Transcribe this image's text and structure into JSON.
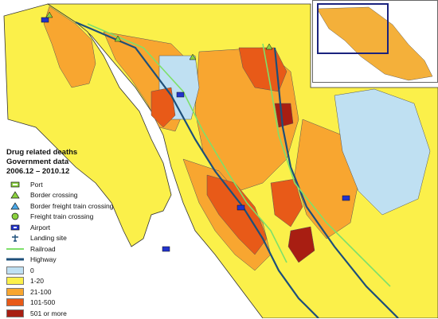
{
  "legend": {
    "title_line1": "Drug related deaths",
    "title_line2": "Government data",
    "title_line3": "2006.12 – 2010.12",
    "symbols": [
      {
        "label": "Port",
        "icon": "port-icon"
      },
      {
        "label": "Border crossing",
        "icon": "border-crossing-icon"
      },
      {
        "label": "Border freight train crossing",
        "icon": "border-freight-train-crossing-icon"
      },
      {
        "label": "Freight train crossing",
        "icon": "freight-train-crossing-icon"
      },
      {
        "label": "Airport",
        "icon": "airport-icon"
      },
      {
        "label": "Landing site",
        "icon": "landing-site-icon"
      }
    ],
    "lines": [
      {
        "label": "Railroad",
        "color": "#7ee06a"
      },
      {
        "label": "Highway",
        "color": "#1d4f7a"
      }
    ],
    "classes": [
      {
        "label": "0",
        "color": "#bfe0f2"
      },
      {
        "label": "1-20",
        "color": "#fbf04a"
      },
      {
        "label": "21-100",
        "color": "#f8a630"
      },
      {
        "label": "101-500",
        "color": "#e85a18"
      },
      {
        "label": "501 or more",
        "color": "#a81e12"
      }
    ]
  },
  "map": {
    "sea_color": "#ffffff",
    "boundary_color": "#333333"
  },
  "inset_map": {
    "highlight_color": "#1a237e"
  }
}
